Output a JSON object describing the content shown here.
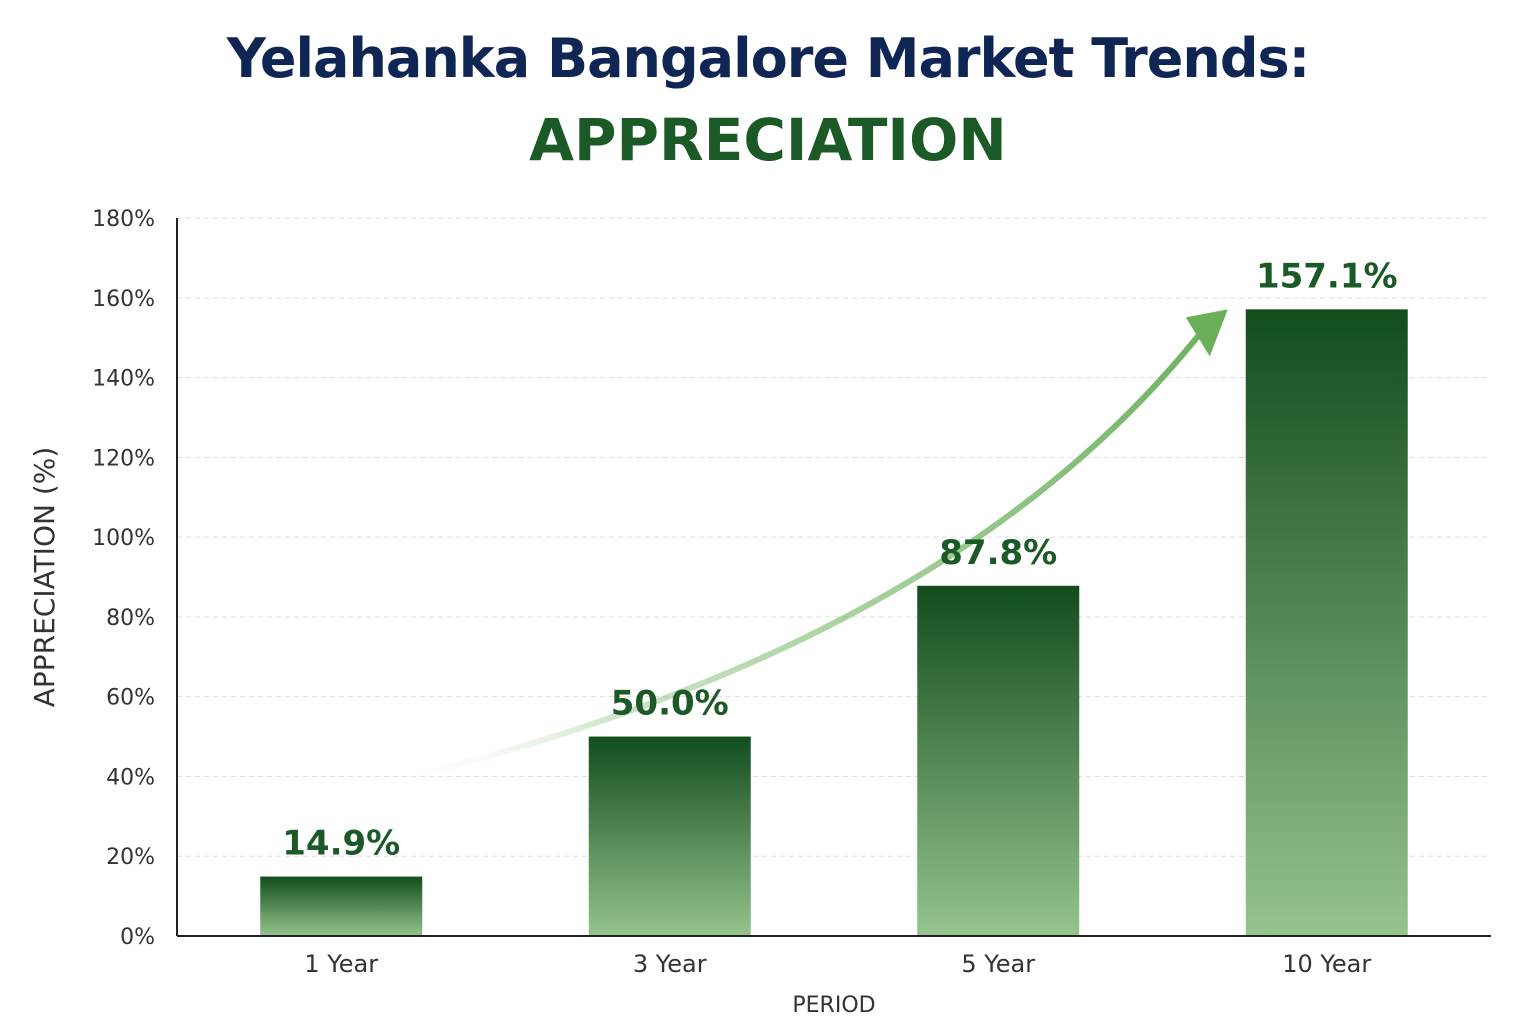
{
  "chart_data": {
    "type": "bar",
    "title": "Yelahanka Bangalore Market Trends:",
    "subtitle": "APPRECIATION",
    "xlabel": "PERIOD",
    "ylabel": "APPRECIATION (%)",
    "categories": [
      "1 Year",
      "3 Year",
      "5 Year",
      "10 Year"
    ],
    "values": [
      14.9,
      50.0,
      87.8,
      157.1
    ],
    "data_labels": [
      "14.9%",
      "50.0%",
      "87.8%",
      "157.1%"
    ],
    "ylim": [
      0,
      180
    ],
    "yticks": [
      0,
      20,
      40,
      60,
      80,
      100,
      120,
      140,
      160,
      180
    ],
    "ytick_labels": [
      "0%",
      "20%",
      "40%",
      "60%",
      "80%",
      "100%",
      "120%",
      "140%",
      "160%",
      "180%"
    ],
    "grid": true,
    "legend": "none",
    "trend_arrow": true,
    "colors": {
      "bar_top": "#124d1e",
      "bar_bottom": "#95c48d",
      "label": "#1b5a26",
      "title": "#0f2554",
      "subtitle": "#1b5a26",
      "arrow": "#6ab05a"
    }
  }
}
